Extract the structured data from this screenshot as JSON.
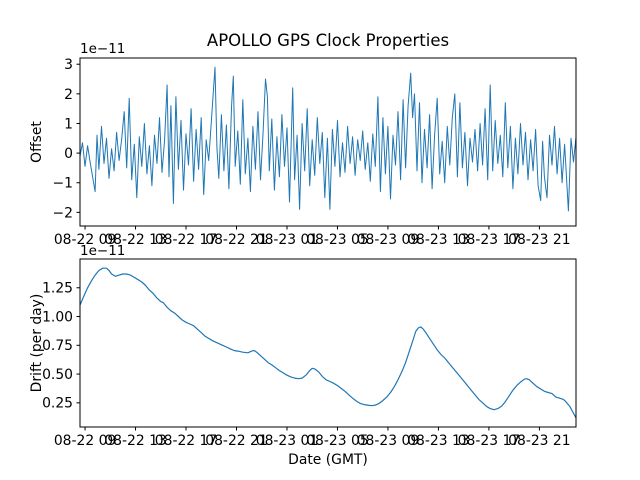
{
  "figure": {
    "title": "APOLLO GPS Clock Properties",
    "xlabel": "Date (GMT)"
  },
  "colors": {
    "line": "#1f77b4",
    "text": "#000000",
    "spine": "#000000",
    "background": "#ffffff"
  },
  "chart_data": [
    {
      "type": "line",
      "name": "offset",
      "title": "APOLLO GPS Clock Properties",
      "ylabel": "Offset",
      "offset_text": "1e−11",
      "y_scale": "1e-11",
      "grid": false,
      "legend": "none",
      "xlim": [
        8.6,
        47.9
      ],
      "ylim": [
        -2.46,
        3.21
      ],
      "x_unit": "hours-of-day on axis labels (MM-DD HH)",
      "xticks": {
        "values": [
          9,
          13,
          17,
          21,
          25,
          29,
          33,
          37,
          41,
          45
        ],
        "labels": [
          "08-22 09",
          "08-22 13",
          "08-22 17",
          "08-22 21",
          "08-23 01",
          "08-23 05",
          "08-23 09",
          "08-23 13",
          "08-23 17",
          "08-23 21"
        ]
      },
      "yticks": {
        "values": [
          3,
          2,
          1,
          0,
          -1,
          -2
        ],
        "labels": [
          "3",
          "2",
          "1",
          "0",
          "−1",
          "−2"
        ]
      },
      "points": [
        [
          8.6,
          -0.1
        ],
        [
          8.8,
          0.35
        ],
        [
          9.0,
          -0.45
        ],
        [
          9.2,
          0.25
        ],
        [
          9.4,
          -0.3
        ],
        [
          9.6,
          -0.8
        ],
        [
          9.8,
          -1.3
        ],
        [
          9.95,
          0.6
        ],
        [
          10.1,
          -0.55
        ],
        [
          10.3,
          0.9
        ],
        [
          10.5,
          -0.35
        ],
        [
          10.7,
          0.5
        ],
        [
          10.9,
          -0.85
        ],
        [
          11.1,
          0.15
        ],
        [
          11.3,
          -0.6
        ],
        [
          11.5,
          0.7
        ],
        [
          11.7,
          -0.25
        ],
        [
          11.9,
          0.45
        ],
        [
          12.1,
          1.4
        ],
        [
          12.3,
          -0.5
        ],
        [
          12.5,
          1.85
        ],
        [
          12.7,
          -0.9
        ],
        [
          12.9,
          0.3
        ],
        [
          13.1,
          -1.5
        ],
        [
          13.3,
          0.55
        ],
        [
          13.5,
          -0.45
        ],
        [
          13.7,
          1.0
        ],
        [
          13.9,
          -0.7
        ],
        [
          14.1,
          0.25
        ],
        [
          14.3,
          -1.1
        ],
        [
          14.5,
          0.6
        ],
        [
          14.7,
          -0.35
        ],
        [
          14.9,
          1.2
        ],
        [
          15.1,
          -0.65
        ],
        [
          15.3,
          0.45
        ],
        [
          15.5,
          2.3
        ],
        [
          15.65,
          -0.8
        ],
        [
          15.8,
          1.6
        ],
        [
          16.0,
          -1.7
        ],
        [
          16.2,
          1.9
        ],
        [
          16.4,
          -0.55
        ],
        [
          16.6,
          1.1
        ],
        [
          16.8,
          -1.25
        ],
        [
          17.0,
          0.65
        ],
        [
          17.2,
          -0.4
        ],
        [
          17.4,
          1.5
        ],
        [
          17.6,
          -0.95
        ],
        [
          17.8,
          0.8
        ],
        [
          18.0,
          -0.55
        ],
        [
          18.2,
          1.2
        ],
        [
          18.4,
          -1.4
        ],
        [
          18.6,
          0.45
        ],
        [
          18.8,
          -0.25
        ],
        [
          19.0,
          1.05
        ],
        [
          19.3,
          2.9
        ],
        [
          19.45,
          0.2
        ],
        [
          19.6,
          -0.85
        ],
        [
          19.8,
          1.3
        ],
        [
          20.0,
          -0.6
        ],
        [
          20.2,
          0.95
        ],
        [
          20.4,
          -1.2
        ],
        [
          20.6,
          1.55
        ],
        [
          20.75,
          2.6
        ],
        [
          20.9,
          -0.45
        ],
        [
          21.1,
          0.75
        ],
        [
          21.3,
          -1.05
        ],
        [
          21.5,
          1.8
        ],
        [
          21.7,
          -0.7
        ],
        [
          21.9,
          0.5
        ],
        [
          22.1,
          -1.3
        ],
        [
          22.3,
          0.9
        ],
        [
          22.5,
          -0.55
        ],
        [
          22.7,
          1.4
        ],
        [
          22.9,
          -0.9
        ],
        [
          23.1,
          0.65
        ],
        [
          23.3,
          2.5
        ],
        [
          23.45,
          1.9
        ],
        [
          23.6,
          -0.6
        ],
        [
          23.8,
          1.15
        ],
        [
          24.0,
          -1.25
        ],
        [
          24.2,
          0.55
        ],
        [
          24.4,
          -0.8
        ],
        [
          24.6,
          1.3
        ],
        [
          24.8,
          -0.45
        ],
        [
          25.0,
          0.85
        ],
        [
          25.2,
          -1.65
        ],
        [
          25.45,
          2.2
        ],
        [
          25.6,
          -0.9
        ],
        [
          25.8,
          0.6
        ],
        [
          26.0,
          -1.9
        ],
        [
          26.2,
          1.0
        ],
        [
          26.4,
          -0.6
        ],
        [
          26.6,
          1.5
        ],
        [
          26.8,
          -1.1
        ],
        [
          27.0,
          0.45
        ],
        [
          27.2,
          -0.75
        ],
        [
          27.4,
          1.2
        ],
        [
          27.6,
          -0.35
        ],
        [
          27.8,
          0.7
        ],
        [
          28.0,
          -1.5
        ],
        [
          28.2,
          0.5
        ],
        [
          28.4,
          -1.9
        ],
        [
          28.6,
          0.8
        ],
        [
          28.8,
          -0.45
        ],
        [
          29.0,
          1.1
        ],
        [
          29.2,
          -0.8
        ],
        [
          29.4,
          0.35
        ],
        [
          29.6,
          -0.65
        ],
        [
          29.8,
          0.9
        ],
        [
          30.0,
          -0.35
        ],
        [
          30.2,
          0.55
        ],
        [
          30.4,
          -0.75
        ],
        [
          30.6,
          0.45
        ],
        [
          30.8,
          -0.25
        ],
        [
          31.0,
          0.75
        ],
        [
          31.2,
          -0.55
        ],
        [
          31.4,
          0.35
        ],
        [
          31.6,
          -0.95
        ],
        [
          31.8,
          0.65
        ],
        [
          32.0,
          -0.45
        ],
        [
          32.2,
          1.9
        ],
        [
          32.4,
          -1.3
        ],
        [
          32.6,
          1.2
        ],
        [
          32.8,
          -0.7
        ],
        [
          33.0,
          0.9
        ],
        [
          33.2,
          -1.55
        ],
        [
          33.4,
          0.6
        ],
        [
          33.6,
          -0.4
        ],
        [
          33.8,
          1.4
        ],
        [
          34.0,
          -0.9
        ],
        [
          34.2,
          1.8
        ],
        [
          34.4,
          -0.5
        ],
        [
          34.6,
          1.6
        ],
        [
          34.8,
          2.7
        ],
        [
          34.95,
          1.2
        ],
        [
          35.1,
          2.0
        ],
        [
          35.3,
          -0.6
        ],
        [
          35.5,
          1.7
        ],
        [
          35.7,
          -1.0
        ],
        [
          35.9,
          0.8
        ],
        [
          36.1,
          -0.5
        ],
        [
          36.3,
          1.3
        ],
        [
          36.5,
          -1.2
        ],
        [
          36.7,
          0.6
        ],
        [
          36.9,
          1.85
        ],
        [
          37.1,
          -0.7
        ],
        [
          37.3,
          0.4
        ],
        [
          37.5,
          -1.0
        ],
        [
          37.7,
          0.9
        ],
        [
          37.9,
          -0.4
        ],
        [
          38.1,
          1.2
        ],
        [
          38.3,
          2.0
        ],
        [
          38.5,
          -0.8
        ],
        [
          38.7,
          1.7
        ],
        [
          38.9,
          -0.5
        ],
        [
          39.1,
          0.7
        ],
        [
          39.3,
          -1.1
        ],
        [
          39.5,
          0.5
        ],
        [
          39.7,
          -0.3
        ],
        [
          39.9,
          0.8
        ],
        [
          40.1,
          -0.6
        ],
        [
          40.3,
          1.0
        ],
        [
          40.5,
          -0.4
        ],
        [
          40.7,
          1.5
        ],
        [
          40.9,
          -0.9
        ],
        [
          41.1,
          2.3
        ],
        [
          41.3,
          -0.6
        ],
        [
          41.5,
          1.1
        ],
        [
          41.7,
          -0.35
        ],
        [
          41.9,
          0.6
        ],
        [
          42.1,
          -0.8
        ],
        [
          42.3,
          1.7
        ],
        [
          42.5,
          -0.5
        ],
        [
          42.7,
          0.9
        ],
        [
          42.9,
          -1.2
        ],
        [
          43.1,
          0.5
        ],
        [
          43.3,
          -0.7
        ],
        [
          43.5,
          1.0
        ],
        [
          43.7,
          -0.4
        ],
        [
          43.9,
          0.7
        ],
        [
          44.1,
          -0.9
        ],
        [
          44.3,
          0.45
        ],
        [
          44.5,
          -0.6
        ],
        [
          44.7,
          0.8
        ],
        [
          44.9,
          -1.1
        ],
        [
          45.1,
          -1.6
        ],
        [
          45.25,
          0.4
        ],
        [
          45.4,
          -0.8
        ],
        [
          45.6,
          -1.5
        ],
        [
          45.8,
          0.6
        ],
        [
          46.0,
          -0.4
        ],
        [
          46.2,
          0.9
        ],
        [
          46.4,
          -0.7
        ],
        [
          46.6,
          0.5
        ],
        [
          46.8,
          -1.0
        ],
        [
          47.0,
          0.3
        ],
        [
          47.3,
          -1.95
        ],
        [
          47.5,
          0.5
        ],
        [
          47.7,
          -0.3
        ],
        [
          47.9,
          0.55
        ]
      ]
    },
    {
      "type": "line",
      "name": "drift",
      "ylabel": "Drift (per day)",
      "offset_text": "1e−11",
      "y_scale": "1e-11",
      "grid": false,
      "legend": "none",
      "xlim": [
        8.6,
        47.9
      ],
      "ylim": [
        0.04,
        1.5
      ],
      "xticks": {
        "values": [
          9,
          13,
          17,
          21,
          25,
          29,
          33,
          37,
          41,
          45
        ],
        "labels": [
          "08-22 09",
          "08-22 13",
          "08-22 17",
          "08-22 21",
          "08-23 01",
          "08-23 05",
          "08-23 09",
          "08-23 13",
          "08-23 17",
          "08-23 21"
        ]
      },
      "yticks": {
        "values": [
          1.25,
          1.0,
          0.75,
          0.5,
          0.25
        ],
        "labels": [
          "1.25",
          "1.00",
          "0.75",
          "0.50",
          "0.25"
        ]
      },
      "points": [
        [
          8.6,
          1.1
        ],
        [
          8.8,
          1.15
        ],
        [
          9.0,
          1.2
        ],
        [
          9.2,
          1.25
        ],
        [
          9.5,
          1.31
        ],
        [
          9.8,
          1.36
        ],
        [
          10.1,
          1.4
        ],
        [
          10.4,
          1.42
        ],
        [
          10.7,
          1.42
        ],
        [
          10.9,
          1.4
        ],
        [
          11.1,
          1.37
        ],
        [
          11.4,
          1.35
        ],
        [
          11.7,
          1.36
        ],
        [
          12.0,
          1.37
        ],
        [
          12.3,
          1.37
        ],
        [
          12.6,
          1.36
        ],
        [
          12.9,
          1.34
        ],
        [
          13.2,
          1.32
        ],
        [
          13.5,
          1.3
        ],
        [
          13.8,
          1.27
        ],
        [
          14.1,
          1.23
        ],
        [
          14.4,
          1.2
        ],
        [
          14.7,
          1.16
        ],
        [
          15.0,
          1.13
        ],
        [
          15.2,
          1.12
        ],
        [
          15.5,
          1.08
        ],
        [
          15.8,
          1.05
        ],
        [
          16.1,
          1.03
        ],
        [
          16.4,
          1.0
        ],
        [
          16.7,
          0.97
        ],
        [
          17.0,
          0.95
        ],
        [
          17.3,
          0.935
        ],
        [
          17.6,
          0.92
        ],
        [
          17.9,
          0.89
        ],
        [
          18.2,
          0.86
        ],
        [
          18.5,
          0.83
        ],
        [
          18.8,
          0.81
        ],
        [
          19.1,
          0.79
        ],
        [
          19.4,
          0.775
        ],
        [
          19.7,
          0.76
        ],
        [
          19.9,
          0.75
        ],
        [
          20.2,
          0.735
        ],
        [
          20.5,
          0.72
        ],
        [
          20.8,
          0.705
        ],
        [
          21.1,
          0.7
        ],
        [
          21.5,
          0.69
        ],
        [
          21.9,
          0.685
        ],
        [
          22.2,
          0.7
        ],
        [
          22.4,
          0.705
        ],
        [
          22.6,
          0.69
        ],
        [
          22.9,
          0.66
        ],
        [
          23.2,
          0.63
        ],
        [
          23.5,
          0.6
        ],
        [
          23.8,
          0.58
        ],
        [
          24.1,
          0.555
        ],
        [
          24.4,
          0.53
        ],
        [
          24.7,
          0.51
        ],
        [
          25.0,
          0.49
        ],
        [
          25.3,
          0.475
        ],
        [
          25.6,
          0.465
        ],
        [
          25.9,
          0.46
        ],
        [
          26.2,
          0.465
        ],
        [
          26.5,
          0.49
        ],
        [
          26.8,
          0.53
        ],
        [
          27.0,
          0.55
        ],
        [
          27.2,
          0.545
        ],
        [
          27.5,
          0.52
        ],
        [
          27.8,
          0.48
        ],
        [
          28.1,
          0.45
        ],
        [
          28.4,
          0.435
        ],
        [
          28.7,
          0.42
        ],
        [
          29.0,
          0.4
        ],
        [
          29.3,
          0.375
        ],
        [
          29.6,
          0.35
        ],
        [
          29.9,
          0.32
        ],
        [
          30.2,
          0.29
        ],
        [
          30.5,
          0.265
        ],
        [
          30.8,
          0.245
        ],
        [
          31.1,
          0.235
        ],
        [
          31.4,
          0.23
        ],
        [
          31.7,
          0.225
        ],
        [
          32.0,
          0.23
        ],
        [
          32.3,
          0.245
        ],
        [
          32.6,
          0.27
        ],
        [
          32.9,
          0.3
        ],
        [
          33.2,
          0.34
        ],
        [
          33.5,
          0.39
        ],
        [
          33.8,
          0.45
        ],
        [
          34.1,
          0.52
        ],
        [
          34.4,
          0.6
        ],
        [
          34.7,
          0.7
        ],
        [
          35.0,
          0.8
        ],
        [
          35.2,
          0.87
        ],
        [
          35.4,
          0.9
        ],
        [
          35.6,
          0.91
        ],
        [
          35.8,
          0.89
        ],
        [
          36.0,
          0.86
        ],
        [
          36.3,
          0.81
        ],
        [
          36.6,
          0.76
        ],
        [
          36.9,
          0.71
        ],
        [
          37.2,
          0.67
        ],
        [
          37.5,
          0.64
        ],
        [
          37.8,
          0.6
        ],
        [
          38.1,
          0.56
        ],
        [
          38.4,
          0.52
        ],
        [
          38.7,
          0.48
        ],
        [
          39.0,
          0.44
        ],
        [
          39.3,
          0.4
        ],
        [
          39.6,
          0.36
        ],
        [
          39.9,
          0.32
        ],
        [
          40.2,
          0.28
        ],
        [
          40.5,
          0.25
        ],
        [
          40.8,
          0.22
        ],
        [
          41.1,
          0.2
        ],
        [
          41.4,
          0.19
        ],
        [
          41.7,
          0.2
        ],
        [
          42.0,
          0.22
        ],
        [
          42.3,
          0.26
        ],
        [
          42.6,
          0.31
        ],
        [
          42.9,
          0.36
        ],
        [
          43.2,
          0.4
        ],
        [
          43.5,
          0.43
        ],
        [
          43.8,
          0.455
        ],
        [
          44.0,
          0.46
        ],
        [
          44.2,
          0.45
        ],
        [
          44.5,
          0.42
        ],
        [
          44.8,
          0.39
        ],
        [
          45.1,
          0.37
        ],
        [
          45.4,
          0.35
        ],
        [
          45.7,
          0.34
        ],
        [
          46.0,
          0.33
        ],
        [
          46.3,
          0.3
        ],
        [
          46.6,
          0.29
        ],
        [
          46.9,
          0.28
        ],
        [
          47.1,
          0.26
        ],
        [
          47.4,
          0.22
        ],
        [
          47.6,
          0.18
        ],
        [
          47.8,
          0.14
        ],
        [
          47.9,
          0.12
        ]
      ]
    }
  ]
}
